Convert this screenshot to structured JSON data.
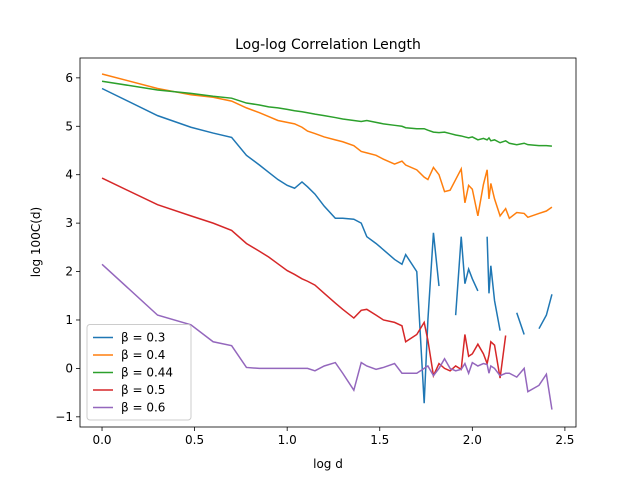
{
  "chart_data": {
    "type": "line",
    "title": "Log-log Correlation Length",
    "x_label": "log d",
    "y_label": "log 100C(d)",
    "x": [
      0,
      0.3,
      0.48,
      0.6,
      0.7,
      0.78,
      0.85,
      0.9,
      0.95,
      1.0,
      1.04,
      1.08,
      1.11,
      1.15,
      1.2,
      1.26,
      1.3,
      1.36,
      1.4,
      1.43,
      1.48,
      1.52,
      1.58,
      1.62,
      1.64,
      1.7,
      1.74,
      1.76,
      1.79,
      1.82,
      1.85,
      1.88,
      1.91,
      1.94,
      1.96,
      1.98,
      2.0,
      2.03,
      2.06,
      2.08,
      2.09,
      2.1,
      2.12,
      2.15,
      2.18,
      2.2,
      2.24,
      2.28,
      2.3,
      2.36,
      2.4,
      2.43
    ],
    "series": [
      {
        "name": "β = 0.3",
        "color": "#1f77b4",
        "values": [
          5.78,
          5.22,
          4.98,
          4.86,
          4.77,
          4.4,
          4.2,
          4.05,
          3.9,
          3.78,
          3.72,
          3.85,
          3.75,
          3.6,
          3.35,
          3.1,
          3.1,
          3.08,
          3.0,
          2.72,
          2.58,
          2.45,
          2.25,
          2.15,
          2.35,
          2.0,
          -0.72,
          1.0,
          2.8,
          1.7,
          null,
          null,
          1.1,
          2.72,
          1.75,
          2.05,
          1.85,
          1.6,
          null,
          2.72,
          1.55,
          2.12,
          1.4,
          0.78,
          null,
          null,
          1.15,
          0.7,
          null,
          0.82,
          1.1,
          1.53
        ]
      },
      {
        "name": "β = 0.4",
        "color": "#ff7f0e",
        "values": [
          6.08,
          5.78,
          5.65,
          5.6,
          5.52,
          5.38,
          5.28,
          5.2,
          5.12,
          5.08,
          5.05,
          4.98,
          4.9,
          4.85,
          4.78,
          4.72,
          4.68,
          4.6,
          4.48,
          4.45,
          4.4,
          4.32,
          4.22,
          4.28,
          4.2,
          4.1,
          3.95,
          3.9,
          4.15,
          4.0,
          3.65,
          3.68,
          3.9,
          4.12,
          3.42,
          3.78,
          3.7,
          3.15,
          3.8,
          4.1,
          3.5,
          3.82,
          3.5,
          3.15,
          3.3,
          3.1,
          3.22,
          3.2,
          3.12,
          3.2,
          3.25,
          3.33
        ]
      },
      {
        "name": "β = 0.44",
        "color": "#2ca02c",
        "values": [
          5.93,
          5.75,
          5.68,
          5.62,
          5.58,
          5.48,
          5.44,
          5.4,
          5.38,
          5.35,
          5.32,
          5.3,
          5.28,
          5.25,
          5.22,
          5.18,
          5.15,
          5.12,
          5.1,
          5.12,
          5.08,
          5.05,
          5.02,
          5.0,
          4.97,
          4.95,
          4.95,
          4.92,
          4.88,
          4.87,
          4.88,
          4.85,
          4.82,
          4.8,
          4.78,
          4.76,
          4.78,
          4.72,
          4.75,
          4.72,
          4.76,
          4.7,
          4.72,
          4.66,
          4.7,
          4.65,
          4.62,
          4.65,
          4.62,
          4.6,
          4.6,
          4.59
        ]
      },
      {
        "name": "β = 0.5",
        "color": "#d62728",
        "values": [
          3.93,
          3.38,
          3.15,
          3.0,
          2.85,
          2.58,
          2.42,
          2.3,
          2.16,
          2.02,
          1.94,
          1.85,
          1.8,
          1.72,
          1.55,
          1.35,
          1.22,
          1.04,
          1.2,
          1.22,
          1.1,
          1.0,
          0.95,
          0.88,
          0.55,
          0.7,
          0.95,
          0.58,
          -0.15,
          0.1,
          0.0,
          -0.05,
          0.05,
          -0.02,
          0.7,
          0.25,
          0.3,
          0.5,
          0.3,
          0.1,
          0.28,
          0.55,
          0.48,
          -0.2,
          0.68,
          null,
          null,
          null,
          null,
          null,
          null,
          null
        ]
      },
      {
        "name": "β = 0.6",
        "color": "#9467bd",
        "values": [
          2.15,
          1.1,
          0.9,
          0.55,
          0.47,
          0.02,
          0.0,
          0.0,
          0.0,
          0.0,
          0.0,
          0.0,
          0.0,
          -0.05,
          0.05,
          0.12,
          -0.1,
          -0.45,
          0.12,
          0.05,
          -0.02,
          0.02,
          0.1,
          -0.1,
          -0.1,
          -0.1,
          0.0,
          0.05,
          -0.15,
          0.0,
          0.2,
          0.0,
          -0.05,
          -0.02,
          0.1,
          -0.1,
          0.12,
          0.05,
          0.1,
          0.08,
          -0.1,
          0.05,
          0.0,
          -0.15,
          -0.1,
          -0.1,
          -0.18,
          0.0,
          -0.48,
          -0.35,
          -0.12,
          -0.85
        ]
      }
    ],
    "xlim": [
      -0.119,
      2.56
    ],
    "ylim": [
      -1.21,
      6.41
    ],
    "xticks": [
      {
        "value": 0,
        "label": "0.0"
      },
      0.5,
      {
        "value": 1,
        "label": "1.0"
      },
      1.5,
      {
        "value": 2,
        "label": "2.0"
      },
      2.5
    ],
    "yticks": [
      {
        "value": -1,
        "label": "−1"
      },
      0,
      1,
      2,
      3,
      4,
      5,
      6
    ],
    "legend": "lower left"
  }
}
